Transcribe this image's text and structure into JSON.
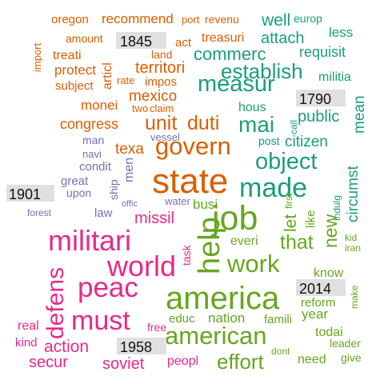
{
  "colors": {
    "c1845": "#d95f02",
    "c1790": "#1b9e77",
    "c1901": "#7570b3",
    "c1958": "#e7298a",
    "c2014": "#66a61e",
    "year_label_bg": "#e0e0e0"
  },
  "year_labels": {
    "y1845": "1845",
    "y1790": "1790",
    "y1901": "1901",
    "y1958": "1958",
    "y2014": "2014"
  },
  "words": {
    "oregon": "oregon",
    "recommend": "recommend",
    "port": "port",
    "revenu": "revenu",
    "well": "well",
    "europ": "europ",
    "less": "less",
    "amount": "amount",
    "act": "act",
    "treasuri": "treasuri",
    "attach": "attach",
    "import": "import",
    "land": "land",
    "commerc": "commerc",
    "requisit": "requisit",
    "treati": "treati",
    "protect": "protect",
    "territori": "territori",
    "establish": "establish",
    "militia": "militia",
    "articl": "articl",
    "rate": "rate",
    "impos": "impos",
    "subject": "subject",
    "measur": "measur",
    "mexico": "mexico",
    "two": "two",
    "claim": "claim",
    "monei": "monei",
    "hous": "hous",
    "mean": "mean",
    "unit": "unit",
    "duti": "duti",
    "congress": "congress",
    "mai": "mai",
    "public": "public",
    "call": "call",
    "govern": "govern",
    "man": "man",
    "vessel": "vessel",
    "texa": "texa",
    "post": "post",
    "citizen": "citizen",
    "navi": "navi",
    "object": "object",
    "condit": "condit",
    "circumst": "circumst",
    "men": "men",
    "great": "great",
    "ship": "ship",
    "state": "state",
    "made": "made",
    "indulg": "indulg",
    "upon": "upon",
    "offic": "offic",
    "water": "water",
    "busi": "busi",
    "first": "first",
    "forest": "forest",
    "law": "law",
    "missil": "missil",
    "job": "job",
    "let": "let",
    "like": "like",
    "militari": "militari",
    "help": "help",
    "new": "new",
    "kid": "kid",
    "iran": "iran",
    "everi": "everi",
    "that": "that",
    "defens": "defens",
    "world": "world",
    "task": "task",
    "work": "work",
    "peac": "peac",
    "know": "know",
    "make": "make",
    "america": "america",
    "reform": "reform",
    "must": "must",
    "nation": "nation",
    "year": "year",
    "real": "real",
    "educ": "educ",
    "famili": "famili",
    "free": "free",
    "american": "american",
    "todai": "todai",
    "kind": "kind",
    "leader": "leader",
    "action": "action",
    "dont": "dont",
    "need": "need",
    "give": "give",
    "secur": "secur",
    "soviet": "soviet",
    "peopl": "peopl",
    "effort": "effort"
  }
}
